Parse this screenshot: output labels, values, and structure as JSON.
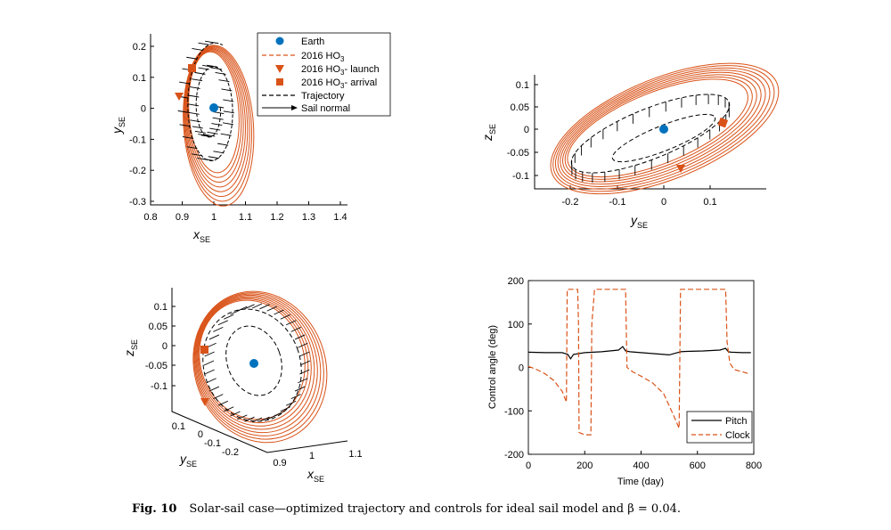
{
  "caption": {
    "fig_label": "Fig. 10",
    "text": "Solar-sail case—optimized trajectory and controls for ideal sail model and β = 0.04."
  },
  "legend": {
    "items": [
      {
        "label": "Earth",
        "symbol": "dot",
        "color": "#0072BD"
      },
      {
        "label": "2016 HO",
        "sub": "3",
        "symbol": "dashed",
        "color": "#D95319"
      },
      {
        "label": "2016 HO",
        "sub": "3",
        "suffix": "- launch",
        "symbol": "triangle-down",
        "color": "#D95319"
      },
      {
        "label": "2016 HO",
        "sub": "3",
        "suffix": "- arrival",
        "symbol": "square",
        "color": "#D95319"
      },
      {
        "label": "Trajectory",
        "symbol": "dashed-black",
        "color": "#000000"
      },
      {
        "label": "Sail normal",
        "symbol": "arrow",
        "color": "#000000"
      }
    ]
  },
  "colors": {
    "earth": "#0072BD",
    "asteroid": "#D95319",
    "trajectory": "#000000"
  },
  "panel_xy": {
    "xlabel": "x",
    "xlabel_sub": "SE",
    "ylabel": "y",
    "ylabel_sub": "SE",
    "xticks": [
      "0.8",
      "0.9",
      "1",
      "1.1",
      "1.2",
      "1.3",
      "1.4"
    ],
    "yticks": [
      "0.2",
      "0.1",
      "0",
      "-0.1",
      "-0.2",
      "-0.3"
    ]
  },
  "panel_yz": {
    "xlabel": "y",
    "xlabel_sub": "SE",
    "ylabel": "z",
    "ylabel_sub": "SE",
    "xticks": [
      "-0.2",
      "-0.1",
      "0",
      "0.1"
    ],
    "yticks": [
      "0.1",
      "0.05",
      "0",
      "-0.05",
      "-0.1"
    ]
  },
  "panel_3d": {
    "zlabel": "z",
    "zlabel_sub": "SE",
    "ylabel": "y",
    "ylabel_sub": "SE",
    "xlabel": "x",
    "xlabel_sub": "SE",
    "zticks": [
      "0.1",
      "0.05",
      "0",
      "-0.05",
      "-0.1"
    ],
    "yticks": [
      "0.1",
      "0",
      "-0.1",
      "-0.2"
    ],
    "xticks": [
      "0.9",
      "1",
      "1.1"
    ]
  },
  "chart_data": {
    "type": "line",
    "xlabel": "Time (day)",
    "ylabel": "Control angle (deg)",
    "xlim": [
      0,
      800
    ],
    "ylim": [
      -200,
      200
    ],
    "xticks": [
      0,
      200,
      400,
      600,
      800
    ],
    "yticks": [
      200,
      100,
      0,
      -100,
      -200
    ],
    "legend_position": "bottom-right",
    "series": [
      {
        "name": "Pitch",
        "style": "solid",
        "color": "#000000",
        "x": [
          0,
          60,
          120,
          140,
          150,
          160,
          200,
          260,
          320,
          335,
          345,
          360,
          420,
          480,
          500,
          540,
          560,
          620,
          680,
          700,
          710,
          720,
          760,
          790
        ],
        "y": [
          35,
          34,
          34,
          30,
          20,
          30,
          34,
          36,
          40,
          48,
          38,
          36,
          33,
          30,
          29,
          36,
          37,
          38,
          40,
          44,
          36,
          35,
          34,
          34
        ]
      },
      {
        "name": "Clock",
        "style": "dashed",
        "color": "#D95319",
        "x": [
          0,
          10,
          30,
          60,
          90,
          120,
          135,
          138,
          140,
          145,
          165,
          175,
          178,
          180,
          200,
          210,
          222,
          225,
          235,
          260,
          300,
          335,
          345,
          350,
          370,
          400,
          440,
          480,
          515,
          535,
          540,
          545,
          560,
          600,
          660,
          700,
          705,
          715,
          730,
          760,
          785
        ],
        "y": [
          2,
          0,
          -5,
          -15,
          -30,
          -55,
          -80,
          180,
          180,
          180,
          180,
          180,
          100,
          -150,
          -155,
          -155,
          -155,
          100,
          180,
          180,
          180,
          180,
          180,
          0,
          -10,
          -20,
          -35,
          -60,
          -110,
          -140,
          180,
          180,
          180,
          180,
          180,
          180,
          60,
          10,
          -5,
          -10,
          -15
        ]
      }
    ]
  }
}
